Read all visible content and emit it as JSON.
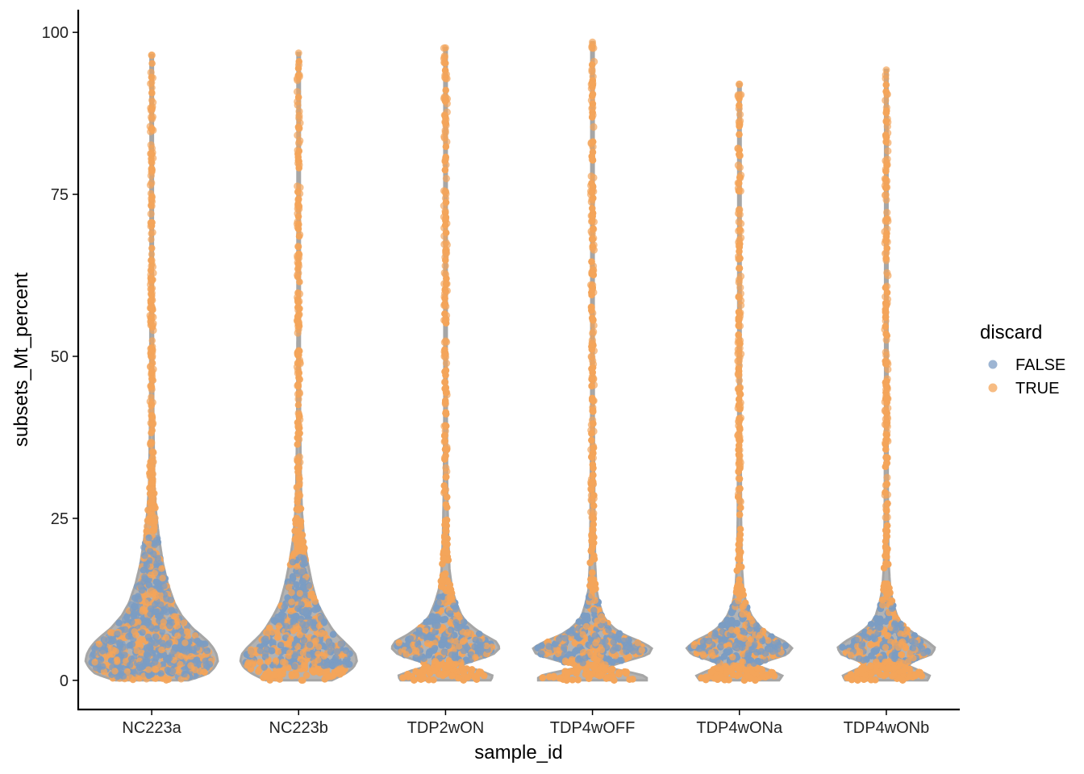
{
  "chart_data": {
    "type": "violin",
    "title": "",
    "xlabel": "sample_id",
    "ylabel": "subsets_Mt_percent",
    "ylim": [
      -4.5,
      103.5
    ],
    "yticks": [
      0,
      25,
      50,
      75,
      100
    ],
    "ytick_labels": [
      "0",
      "25",
      "50",
      "75",
      "100"
    ],
    "categories": [
      "NC223a",
      "NC223b",
      "TDP2wON",
      "TDP4wOFF",
      "TDP4wONa",
      "TDP4wONb"
    ],
    "grid": false,
    "legend": {
      "title": "discard",
      "placement": "right",
      "entries": [
        {
          "label": "FALSE",
          "color": "#7c9cc4"
        },
        {
          "label": "TRUE",
          "color": "#f4a55a"
        }
      ]
    },
    "colors": {
      "violin_outline": "#a6a6a6",
      "false_points": "#7c9cc4",
      "true_points": "#f4a55a"
    },
    "series": [
      {
        "name": "NC223a",
        "max": 96.5,
        "density": [
          [
            0,
            0.55
          ],
          [
            1,
            0.85
          ],
          [
            2,
            0.95
          ],
          [
            3,
            1.0
          ],
          [
            4,
            0.98
          ],
          [
            5,
            0.93
          ],
          [
            6,
            0.85
          ],
          [
            7,
            0.74
          ],
          [
            8,
            0.62
          ],
          [
            10,
            0.45
          ],
          [
            12,
            0.34
          ],
          [
            15,
            0.24
          ],
          [
            18,
            0.17
          ],
          [
            22,
            0.11
          ],
          [
            26,
            0.065
          ],
          [
            30,
            0.04
          ],
          [
            40,
            0.025
          ],
          [
            60,
            0.018
          ],
          [
            96.5,
            0.01
          ]
        ],
        "false_range": [
          0.5,
          22
        ],
        "true_threshold": 12
      },
      {
        "name": "NC223b",
        "max": 96.8,
        "density": [
          [
            0,
            0.5
          ],
          [
            1,
            0.7
          ],
          [
            2,
            0.83
          ],
          [
            3,
            0.88
          ],
          [
            4,
            0.86
          ],
          [
            5,
            0.78
          ],
          [
            6,
            0.68
          ],
          [
            7,
            0.58
          ],
          [
            8,
            0.5
          ],
          [
            10,
            0.38
          ],
          [
            12,
            0.28
          ],
          [
            15,
            0.2
          ],
          [
            18,
            0.14
          ],
          [
            22,
            0.08
          ],
          [
            26,
            0.05
          ],
          [
            30,
            0.035
          ],
          [
            40,
            0.022
          ],
          [
            60,
            0.016
          ],
          [
            96.8,
            0.01
          ]
        ],
        "false_range": [
          2,
          19
        ],
        "true_threshold": 11
      },
      {
        "name": "TDP2wON",
        "max": 97.6,
        "density": [
          [
            0,
            0.68
          ],
          [
            0.7,
            0.72
          ],
          [
            1.5,
            0.52
          ],
          [
            2.3,
            0.22
          ],
          [
            3,
            0.42
          ],
          [
            4,
            0.72
          ],
          [
            5,
            0.82
          ],
          [
            6,
            0.76
          ],
          [
            7,
            0.58
          ],
          [
            8,
            0.44
          ],
          [
            9,
            0.32
          ],
          [
            10,
            0.24
          ],
          [
            12,
            0.16
          ],
          [
            14,
            0.1
          ],
          [
            17,
            0.06
          ],
          [
            22,
            0.04
          ],
          [
            30,
            0.025
          ],
          [
            50,
            0.015
          ],
          [
            97.6,
            0.01
          ]
        ],
        "false_range": [
          3,
          13
        ],
        "true_threshold": 12
      },
      {
        "name": "TDP4wOFF",
        "max": 98.5,
        "density": [
          [
            0,
            0.82
          ],
          [
            0.6,
            0.82
          ],
          [
            1.3,
            0.55
          ],
          [
            2,
            0.2
          ],
          [
            3,
            0.52
          ],
          [
            4,
            0.85
          ],
          [
            5,
            0.9
          ],
          [
            6,
            0.72
          ],
          [
            7,
            0.48
          ],
          [
            8,
            0.33
          ],
          [
            9,
            0.23
          ],
          [
            10,
            0.16
          ],
          [
            12,
            0.1
          ],
          [
            14,
            0.06
          ],
          [
            18,
            0.04
          ],
          [
            25,
            0.03
          ],
          [
            40,
            0.02
          ],
          [
            98.5,
            0.012
          ]
        ],
        "false_range": [
          2.5,
          13
        ],
        "true_threshold": 11
      },
      {
        "name": "TDP4wONa",
        "max": 92,
        "density": [
          [
            0,
            0.6
          ],
          [
            0.7,
            0.65
          ],
          [
            1.5,
            0.48
          ],
          [
            2.3,
            0.26
          ],
          [
            3,
            0.42
          ],
          [
            4,
            0.72
          ],
          [
            5,
            0.8
          ],
          [
            6,
            0.68
          ],
          [
            7,
            0.48
          ],
          [
            8,
            0.34
          ],
          [
            9,
            0.25
          ],
          [
            10,
            0.18
          ],
          [
            12,
            0.1
          ],
          [
            14,
            0.06
          ],
          [
            18,
            0.035
          ],
          [
            25,
            0.025
          ],
          [
            40,
            0.018
          ],
          [
            92,
            0.01
          ]
        ],
        "false_range": [
          2.5,
          12
        ],
        "true_threshold": 11
      },
      {
        "name": "TDP4wONb",
        "max": 94.2,
        "density": [
          [
            0,
            0.62
          ],
          [
            0.7,
            0.66
          ],
          [
            1.5,
            0.5
          ],
          [
            2.3,
            0.32
          ],
          [
            3,
            0.42
          ],
          [
            4,
            0.68
          ],
          [
            5,
            0.74
          ],
          [
            6,
            0.62
          ],
          [
            7,
            0.45
          ],
          [
            8,
            0.32
          ],
          [
            9,
            0.22
          ],
          [
            10,
            0.16
          ],
          [
            12,
            0.1
          ],
          [
            14,
            0.06
          ],
          [
            18,
            0.035
          ],
          [
            25,
            0.025
          ],
          [
            40,
            0.018
          ],
          [
            94.2,
            0.01
          ]
        ],
        "false_range": [
          3,
          12
        ],
        "true_threshold": 11
      }
    ]
  }
}
